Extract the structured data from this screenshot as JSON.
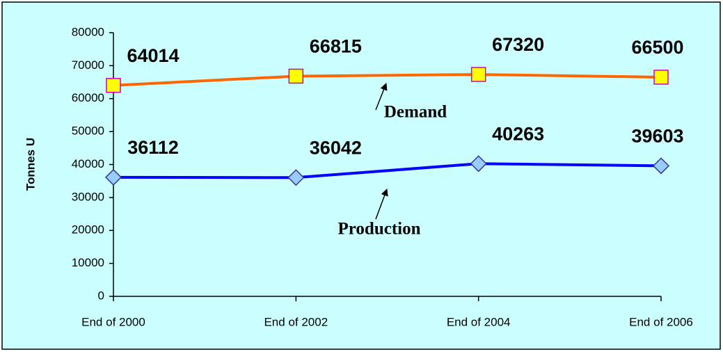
{
  "chart_data": {
    "type": "line",
    "y_label": "Tonnes U",
    "categories": [
      "End of 2000",
      "End of 2002",
      "End of 2004",
      "End of 2006"
    ],
    "series": [
      {
        "name": "Demand",
        "color": "#ff6600",
        "marker": "square",
        "marker_color": "#ffff00",
        "marker_edge": "#cc00cc",
        "values": [
          64014,
          66815,
          67320,
          66500
        ]
      },
      {
        "name": "Production",
        "color": "#0000ff",
        "marker": "diamond",
        "marker_color": "#99ccff",
        "marker_edge": "#333399",
        "values": [
          36112,
          36042,
          40263,
          39603
        ]
      }
    ],
    "annotations": [
      {
        "text": "Demand"
      },
      {
        "text": "Production"
      }
    ],
    "ylim": [
      0,
      80000
    ],
    "yticks": [
      0,
      10000,
      20000,
      30000,
      40000,
      50000,
      60000,
      70000,
      80000
    ],
    "background": "#ccffff",
    "grid": false
  }
}
